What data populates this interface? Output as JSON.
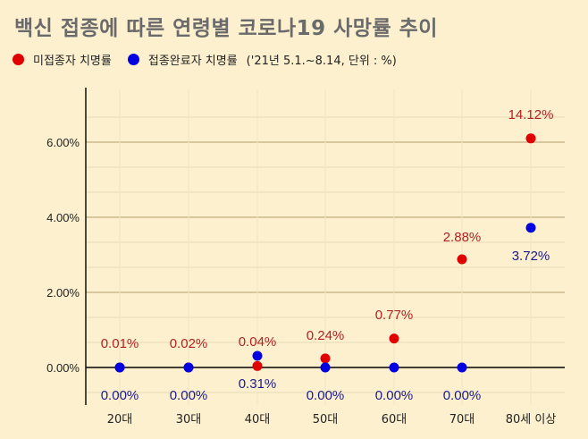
{
  "title": "백신 접종에 따른 연령별 코로나19 사망률 추이",
  "legend": {
    "items": [
      {
        "label": "미접종자 치명률",
        "color": "#e00000"
      },
      {
        "label": "접종완료자 치명률",
        "color": "#0000e0"
      }
    ],
    "note": "('21년 5.1.~8.14, 단위 : %)"
  },
  "chart_data": {
    "type": "scatter",
    "title": "백신 접종에 따른 연령별 코로나19 사망률 추이",
    "xlabel": "",
    "ylabel": "",
    "categories": [
      "20대",
      "30대",
      "40대",
      "50대",
      "60대",
      "70대",
      "80세 이상"
    ],
    "y_ticks": [
      "0.00%",
      "2.00%",
      "4.00%",
      "6.00%"
    ],
    "ylim": [
      -0.67,
      7.33
    ],
    "grid": true,
    "legend_position": "top-left",
    "series": [
      {
        "name": "미접종자 치명률",
        "color": "#e00000",
        "label_color": "#b22222",
        "values": [
          0.01,
          0.02,
          0.04,
          0.24,
          0.77,
          2.88,
          14.12
        ],
        "plotted_y": [
          0.0,
          0.0,
          0.04,
          0.24,
          0.77,
          2.88,
          6.1
        ],
        "labels": [
          "0.01%",
          "0.02%",
          "0.04%",
          "0.24%",
          "0.77%",
          "2.88%",
          "14.12%"
        ]
      },
      {
        "name": "접종완료자 치명률",
        "color": "#0000e0",
        "label_color": "#1a1a8c",
        "values": [
          0.0,
          0.0,
          0.31,
          0.0,
          0.0,
          0.0,
          3.72
        ],
        "plotted_y": [
          0.0,
          0.0,
          0.31,
          0.0,
          0.0,
          0.0,
          3.72
        ],
        "labels": [
          "0.00%",
          "0.00%",
          "0.31%",
          "0.00%",
          "0.00%",
          "0.00%",
          "3.72%"
        ]
      }
    ]
  }
}
